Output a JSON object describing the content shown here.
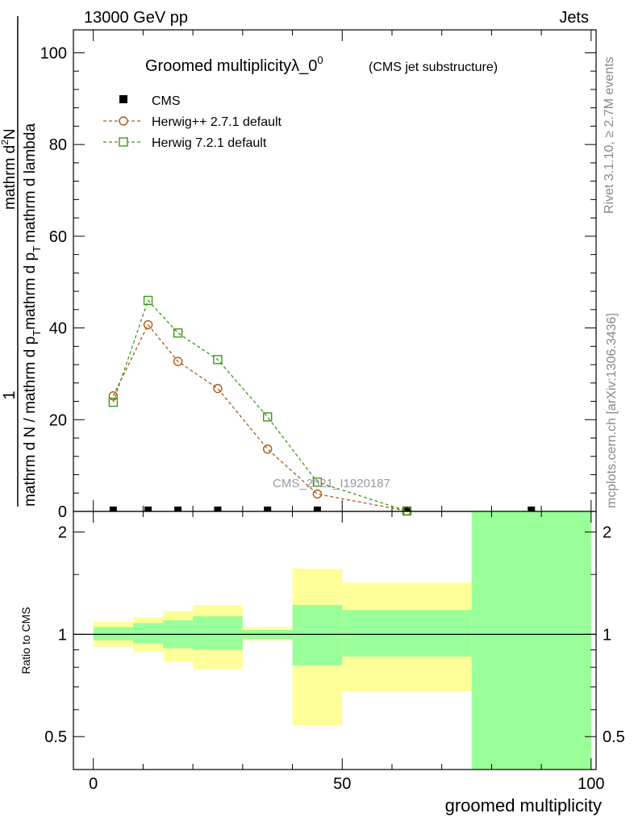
{
  "header": {
    "energy_label": "13000 GeV pp",
    "process_label": "Jets"
  },
  "side": {
    "rivet_label": "Rivet 3.1.10, ≥ 2.7M events",
    "mcplots_label": "mcplots.cern.ch [arXiv:1306.3436]"
  },
  "colors": {
    "cms": "#000000",
    "herwigpp": "#b05a10",
    "herwig7": "#3c9a18",
    "band_inner": "#99ff99",
    "band_outer": "#ffff99"
  },
  "chart_data": [
    {
      "type": "line",
      "title": "Groomed multiplicityλ_0",
      "title_sup": "0",
      "subtitle": "(CMS jet substructure)",
      "ylabel_numerator": "1",
      "ylabel_denominator": "mathrm d N / mathrm d p",
      "ylabel_main": "mathrm d p",
      "ylabel_main_sub": "T",
      "ylabel_main_rest": "mathrm d p",
      "ylabel_main_rest_sub": "T",
      "ylabel_main_tail": "mathrm d lambda",
      "ylabel_top": "mathrm d",
      "ylabel_top_sup": "2",
      "ylabel_top_rest": "N",
      "analysis_label": "CMS_2021_I1920187",
      "xlim": [
        -4,
        101
      ],
      "ylim": [
        0,
        105
      ],
      "yticks": [
        0,
        20,
        40,
        60,
        80,
        100
      ],
      "legend_position": "top-left",
      "series": [
        {
          "name": "CMS",
          "marker": "filled-square",
          "x": [
            4,
            11,
            17,
            25,
            35,
            45,
            63,
            88
          ],
          "y": [
            0,
            0,
            0,
            0,
            0,
            0,
            0,
            0
          ]
        },
        {
          "name": "Herwig++ 2.7.1 default",
          "marker": "open-circle",
          "x": [
            4,
            11,
            17,
            25,
            35,
            45,
            63
          ],
          "y": [
            25.2,
            40.7,
            32.7,
            26.8,
            13.6,
            3.8,
            0.1
          ]
        },
        {
          "name": "Herwig 7.2.1 default",
          "marker": "open-square",
          "x": [
            4,
            11,
            17,
            25,
            35,
            45,
            63
          ],
          "y": [
            23.8,
            46.0,
            38.9,
            33.1,
            20.6,
            6.4,
            0.1
          ]
        }
      ]
    },
    {
      "type": "area",
      "ylabel": "Ratio to CMS",
      "xlabel": "groomed multiplicity",
      "xlim": [
        -4,
        101
      ],
      "ylim": [
        0.4,
        2.3
      ],
      "log_y": true,
      "yticks": [
        "0.5",
        "1",
        "2"
      ],
      "xticks": [
        "0",
        "50",
        "100"
      ],
      "reference_line": 1,
      "bins": [
        {
          "x0": 0,
          "x1": 8,
          "inner": [
            0.96,
            1.05
          ],
          "outer": [
            0.92,
            1.09
          ]
        },
        {
          "x0": 8,
          "x1": 14,
          "inner": [
            0.94,
            1.08
          ],
          "outer": [
            0.89,
            1.12
          ]
        },
        {
          "x0": 14,
          "x1": 20,
          "inner": [
            0.91,
            1.1
          ],
          "outer": [
            0.83,
            1.17
          ]
        },
        {
          "x0": 20,
          "x1": 30,
          "inner": [
            0.9,
            1.13
          ],
          "outer": [
            0.79,
            1.22
          ]
        },
        {
          "x0": 30,
          "x1": 40,
          "inner": [
            0.97,
            1.03
          ],
          "outer": [
            0.96,
            1.05
          ]
        },
        {
          "x0": 40,
          "x1": 50,
          "inner": [
            0.81,
            1.22
          ],
          "outer": [
            0.54,
            1.56
          ]
        },
        {
          "x0": 50,
          "x1": 76,
          "inner": [
            0.86,
            1.18
          ],
          "outer": [
            0.68,
            1.42
          ]
        },
        {
          "x0": 76,
          "x1": 100,
          "inner": [
            0.4,
            2.3
          ],
          "outer": [
            0.4,
            2.3
          ]
        }
      ]
    }
  ]
}
